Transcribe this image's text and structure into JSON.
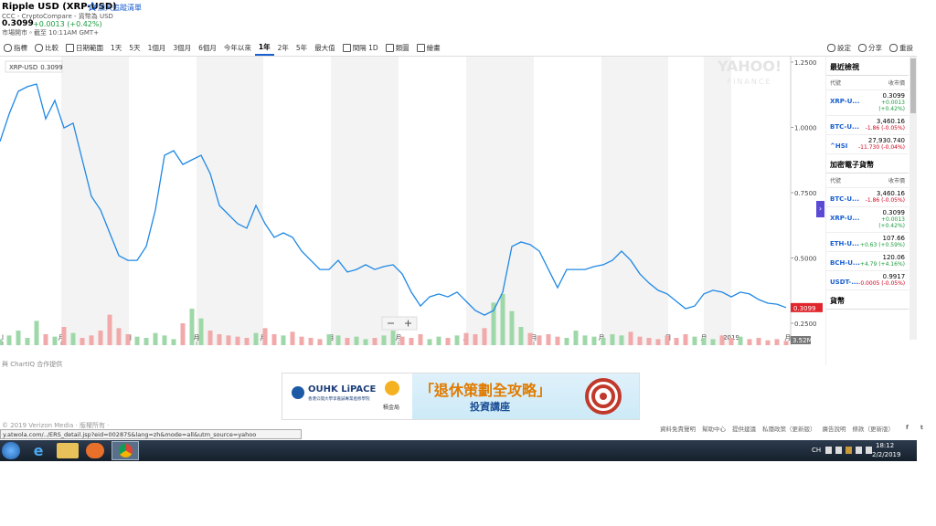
{
  "header": {
    "title": "Ripple USD (XRP-USD)",
    "watchlist": "加入追蹤清單",
    "source": "CCC - CryptoCompare - 貨幣為 USD",
    "price": "0.3099",
    "change": "+0.0013 (+0.42%)",
    "market_time": "市場開市。截至 10:11AM GMT+"
  },
  "toolbar": {
    "left": [
      "指標",
      "比較",
      "日期範圍"
    ],
    "ranges": [
      "1天",
      "5天",
      "1個月",
      "3個月",
      "6個月",
      "今年以來",
      "1年",
      "2年",
      "5年",
      "最大值"
    ],
    "active_range": 6,
    "tools": [
      "間隔 1D",
      "類圖",
      "繪畫"
    ],
    "right": [
      "設定",
      "分享",
      "重設"
    ]
  },
  "chart_data": {
    "type": "line",
    "watermark": "YAHOO!",
    "watermark_sub": "FINANCE",
    "series": [
      {
        "name": "XRP-USD",
        "color": "#1e88e5",
        "values": [
          0.946,
          1.051,
          1.138,
          1.156,
          1.166,
          1.033,
          1.103,
          0.998,
          1.016,
          0.876,
          0.736,
          0.684,
          0.596,
          0.509,
          0.491,
          0.491,
          0.544,
          0.684,
          0.893,
          0.911,
          0.858,
          0.876,
          0.893,
          0.823,
          0.701,
          0.666,
          0.631,
          0.614,
          0.701,
          0.631,
          0.579,
          0.596,
          0.579,
          0.526,
          0.491,
          0.456,
          0.456,
          0.491,
          0.446,
          0.456,
          0.474,
          0.456,
          0.467,
          0.474,
          0.439,
          0.369,
          0.316,
          0.351,
          0.362,
          0.351,
          0.369,
          0.334,
          0.299,
          0.281,
          0.299,
          0.369,
          0.544,
          0.561,
          0.551,
          0.526,
          0.456,
          0.386,
          0.456,
          0.456,
          0.456,
          0.467,
          0.474,
          0.491,
          0.526,
          0.491,
          0.439,
          0.404,
          0.376,
          0.362,
          0.334,
          0.306,
          0.316,
          0.362,
          0.376,
          0.369,
          0.351,
          0.369,
          0.362,
          0.341,
          0.327,
          0.323,
          0.3099
        ]
      }
    ],
    "xlim": [
      0,
      86.5
    ],
    "xticks": [
      {
        "value": 0.3,
        "label": "l"
      },
      {
        "value": 6.7,
        "label": "月"
      },
      {
        "value": 14.1,
        "label": "月"
      },
      {
        "value": 21.5,
        "label": "月"
      },
      {
        "value": 28.8,
        "label": "月"
      },
      {
        "value": 36.2,
        "label": "月"
      },
      {
        "value": 43.6,
        "label": "月"
      },
      {
        "value": 51.0,
        "label": "月"
      },
      {
        "value": 58.4,
        "label": "月"
      },
      {
        "value": 65.8,
        "label": "月"
      },
      {
        "value": 73.1,
        "label": "月"
      },
      {
        "value": 77.0,
        "label": "月"
      },
      {
        "value": 80.0,
        "label": "2019"
      },
      {
        "value": 86.2,
        "label": "月"
      }
    ],
    "ylim": [
      0.166,
      1.271
    ],
    "yticks": [
      {
        "value": 1.25,
        "label": "1.2500"
      },
      {
        "value": 1.0,
        "label": "1.0000"
      },
      {
        "value": 0.75,
        "label": "0.7500"
      },
      {
        "value": 0.5,
        "label": "0.5000"
      },
      {
        "value": 0.25,
        "label": "0.2500"
      }
    ],
    "volume": {
      "ylim": [
        0,
        60
      ],
      "value_labels_last": "3.52M",
      "values": [
        5,
        8,
        12,
        6,
        20,
        9,
        7,
        15,
        10,
        6,
        8,
        12,
        25,
        14,
        9,
        7,
        6,
        10,
        8,
        5,
        18,
        30,
        22,
        12,
        9,
        8,
        7,
        6,
        10,
        14,
        9,
        8,
        11,
        7,
        6,
        5,
        9,
        8,
        6,
        7,
        5,
        6,
        8,
        12,
        7,
        6,
        9,
        5,
        7,
        6,
        8,
        10,
        9,
        14,
        35,
        42,
        28,
        15,
        10,
        8,
        9,
        7,
        6,
        12,
        8,
        7,
        6,
        9,
        8,
        11,
        7,
        6,
        5,
        8,
        6,
        9,
        7,
        6,
        5,
        8,
        6,
        7,
        5,
        6,
        4,
        5,
        3.52
      ]
    }
  },
  "sidebar": {
    "sections": [
      {
        "title": "最近檢視",
        "columns": [
          "代號",
          "收市價"
        ],
        "rows": [
          {
            "symbol": "XRP-U...",
            "price": "0.3099",
            "change": [
              "+0.0013",
              "(+0.42%)"
            ]
          },
          {
            "symbol": "BTC-U...",
            "price": "3,460.16",
            "change": [
              "-1.86 (-0.05%)"
            ]
          },
          {
            "symbol": "^HSI",
            "price": "27,930.740",
            "change": [
              "-11.730 (-0.04%)"
            ]
          }
        ]
      },
      {
        "title": "加密電子貨幣",
        "columns": [
          "代號",
          "收市價"
        ],
        "rows": [
          {
            "symbol": "BTC-U...",
            "price": "3,460.16",
            "change": [
              "-1.86 (-0.05%)"
            ]
          },
          {
            "symbol": "XRP-U...",
            "price": "0.3099",
            "change": [
              "+0.0013",
              "(+0.42%)"
            ]
          },
          {
            "symbol": "ETH-U...",
            "price": "107.66",
            "change": [
              "+0.63 (+0.59%)"
            ]
          },
          {
            "symbol": "BCH-U...",
            "price": "120.06",
            "change": [
              "+4.79 (+4.16%)"
            ]
          },
          {
            "symbol": "USDT-...",
            "price": "0.9917",
            "change": [
              "-0.0005 (-0.05%)"
            ]
          }
        ]
      },
      {
        "title": "貨幣"
      }
    ]
  },
  "chart_credit": "與 ChartIQ 合作提供",
  "ad": {
    "brand": "OUHK LiPACE",
    "brand_sub": "香港公開大學李嘉誠專業進修學院",
    "partner": "積金局",
    "headline": "「退休策劃全攻略」",
    "subline": "投資講座"
  },
  "footer": {
    "copyright": "© 2019 Verizon Media · 版權所有 ·",
    "links": [
      "資料免責聲明",
      "幫助中心",
      "提供建議",
      "私隱政策（更新版）",
      "廣告說明",
      "條款（更新版）"
    ],
    "social": [
      "f",
      "t"
    ]
  },
  "status_url": "y.atwola.com/../ERS_detail.jsp?eid=00287S&lang=zh&mode=all&utm_source=yahoo",
  "taskbar": {
    "lang": "CH",
    "time": "18:12",
    "date": "2/2/2019"
  }
}
